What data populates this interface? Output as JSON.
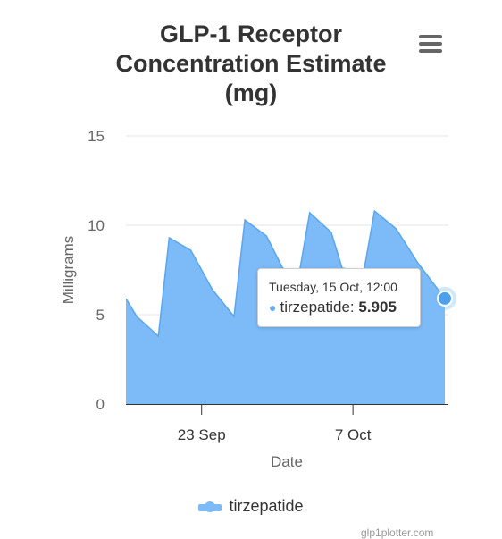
{
  "menu": {
    "icon": "hamburger-menu-icon"
  },
  "tooltip": {
    "date": "Tuesday, 15 Oct, 12:00",
    "series": "tirzepatide",
    "separator": ": ",
    "value": "5.905"
  },
  "credits": "glp1plotter.com",
  "colors": {
    "series_fill": "#7cbaf8",
    "series_line": "#5aa6f0",
    "marker": "#4da0ec"
  },
  "chart_data": {
    "type": "area",
    "title": "GLP-1 Receptor\nConcentration Estimate\n(mg)",
    "xlabel": "Date",
    "ylabel": "Milligrams",
    "xlim": [
      "2024-09-16",
      "2024-10-15T12:00"
    ],
    "ylim": [
      0,
      15
    ],
    "y_ticks": [
      0,
      5,
      10,
      15
    ],
    "x_ticks": [
      {
        "x": "2024-09-23",
        "label": "23 Sep"
      },
      {
        "x": "2024-10-07",
        "label": "7 Oct"
      }
    ],
    "grid": true,
    "legend": "bottom-center",
    "series": [
      {
        "name": "tirzepatide",
        "points": [
          [
            "2024-09-16",
            5.9
          ],
          [
            "2024-09-17",
            4.9
          ],
          [
            "2024-09-19",
            3.8
          ],
          [
            "2024-09-20",
            9.3
          ],
          [
            "2024-09-22",
            8.6
          ],
          [
            "2024-09-24",
            6.4
          ],
          [
            "2024-09-26",
            4.9
          ],
          [
            "2024-09-27",
            10.3
          ],
          [
            "2024-09-29",
            9.4
          ],
          [
            "2024-09-30T12:00",
            7.6
          ],
          [
            "2024-10-02",
            7.2
          ],
          [
            "2024-10-03",
            10.7
          ],
          [
            "2024-10-05",
            9.6
          ],
          [
            "2024-10-06",
            7.6
          ],
          [
            "2024-10-08",
            7.4
          ],
          [
            "2024-10-09",
            10.8
          ],
          [
            "2024-10-11",
            9.8
          ],
          [
            "2024-10-13",
            7.9
          ],
          [
            "2024-10-15T12:00",
            5.905
          ]
        ]
      }
    ],
    "highlighted_point": [
      "2024-10-15T12:00",
      5.905
    ]
  }
}
